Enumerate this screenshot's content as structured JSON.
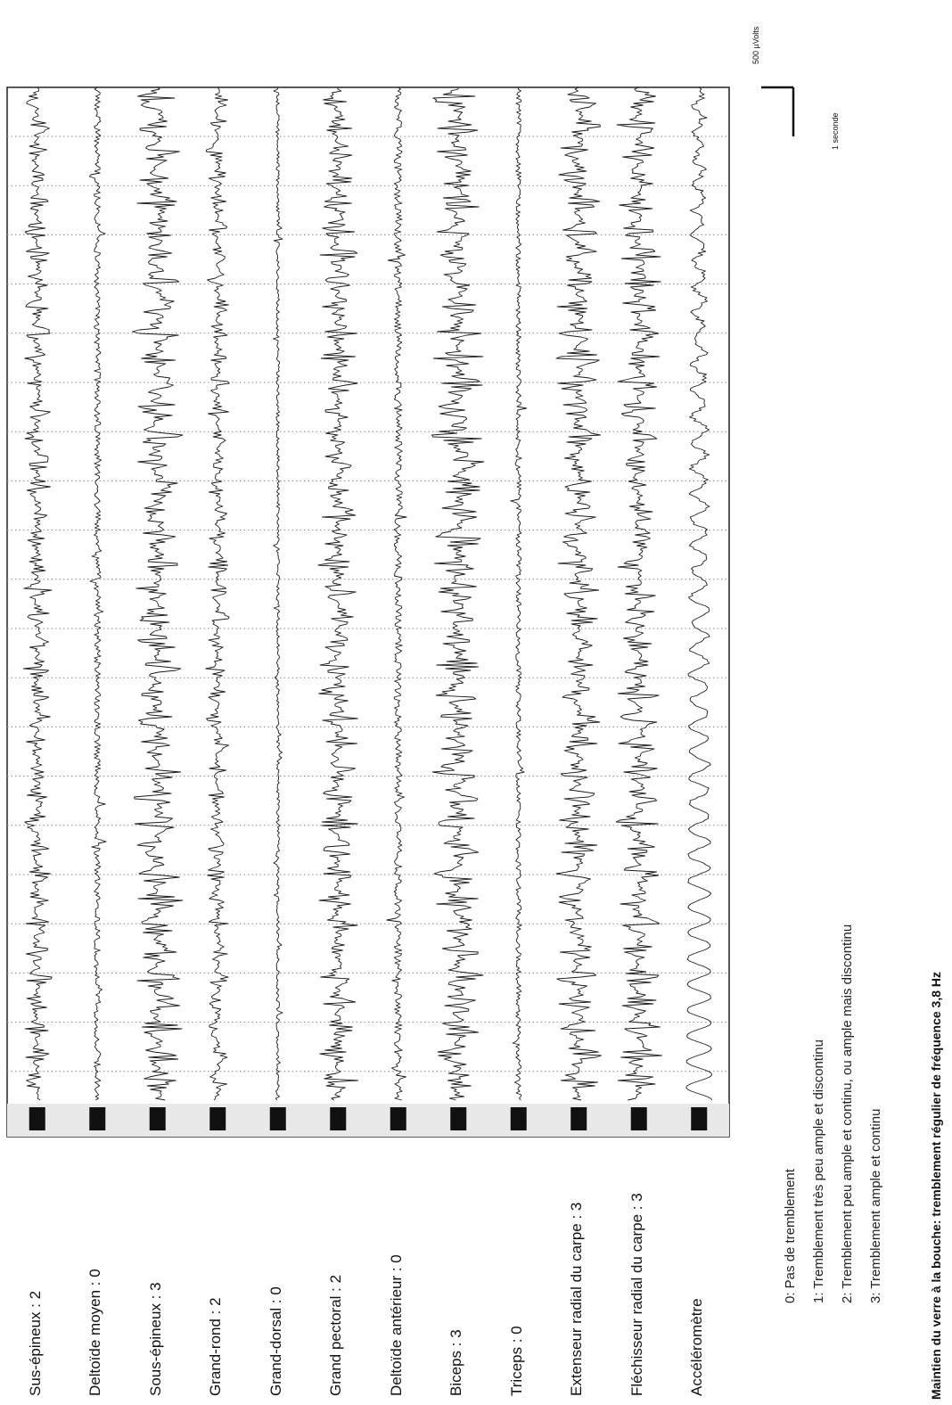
{
  "channels": [
    {
      "label": "Sus-épineux : 2",
      "score": 2,
      "level": 0.55,
      "mode": "tremor"
    },
    {
      "label": "Deltoïde moyen : 0",
      "score": 0,
      "level": 0.12,
      "mode": "flat"
    },
    {
      "label": "Sous-épineux : 3",
      "score": 3,
      "level": 0.95,
      "mode": "tremor"
    },
    {
      "label": "Grand-rond : 2",
      "score": 2,
      "level": 0.45,
      "mode": "tremor"
    },
    {
      "label": "Grand-dorsal : 0",
      "score": 0,
      "level": 0.06,
      "mode": "flat"
    },
    {
      "label": "Grand pectoral : 2",
      "score": 2,
      "level": 0.75,
      "mode": "tremor"
    },
    {
      "label": "Deltoïde antérieur : 0",
      "score": 0,
      "level": 0.15,
      "mode": "flat"
    },
    {
      "label": "Biceps : 3",
      "score": 3,
      "level": 1.0,
      "mode": "tremor"
    },
    {
      "label": "Triceps : 0",
      "score": 0,
      "level": 0.1,
      "mode": "flat"
    },
    {
      "label": "Extenseur radial du carpe : 3",
      "score": 3,
      "level": 0.85,
      "mode": "tremor"
    },
    {
      "label": "Fléchisseur radial du carpe : 3",
      "score": 3,
      "level": 0.85,
      "mode": "tremor"
    },
    {
      "label": "Accéléromètre",
      "score": null,
      "level": 0.6,
      "mode": "accel"
    }
  ],
  "legend": [
    "0: Pas de tremblement",
    "1: Tremblement  très peu ample et discontinu",
    "2: Tremblement  peu ample et continu, ou ample mais discontinu",
    "3: Tremblement  ample et continu"
  ],
  "caption": "Maintien du verre à la bouche: tremblement régulier de fréquence 3,8 Hz",
  "scale": {
    "amplitude_label": "500 µVolts",
    "time_label": "1 seconde"
  },
  "chart_data": {
    "type": "line",
    "title": "Maintien du verre à la bouche: tremblement régulier de fréquence 3,8 Hz",
    "xlabel": "",
    "ylabel": "",
    "tremor_frequency_hz": 3.8,
    "scale_bar": {
      "amplitude_uV": 500,
      "time_s": 1
    },
    "series": [
      {
        "name": "Sus-épineux",
        "score": 2
      },
      {
        "name": "Deltoïde moyen",
        "score": 0
      },
      {
        "name": "Sous-épineux",
        "score": 3
      },
      {
        "name": "Grand-rond",
        "score": 2
      },
      {
        "name": "Grand-dorsal",
        "score": 0
      },
      {
        "name": "Grand pectoral",
        "score": 2
      },
      {
        "name": "Deltoïde antérieur",
        "score": 0
      },
      {
        "name": "Biceps",
        "score": 3
      },
      {
        "name": "Triceps",
        "score": 0
      },
      {
        "name": "Extenseur radial du carpe",
        "score": 3
      },
      {
        "name": "Fléchisseur radial du carpe",
        "score": 3
      },
      {
        "name": "Accéléromètre",
        "score": null
      }
    ],
    "grid": true
  }
}
